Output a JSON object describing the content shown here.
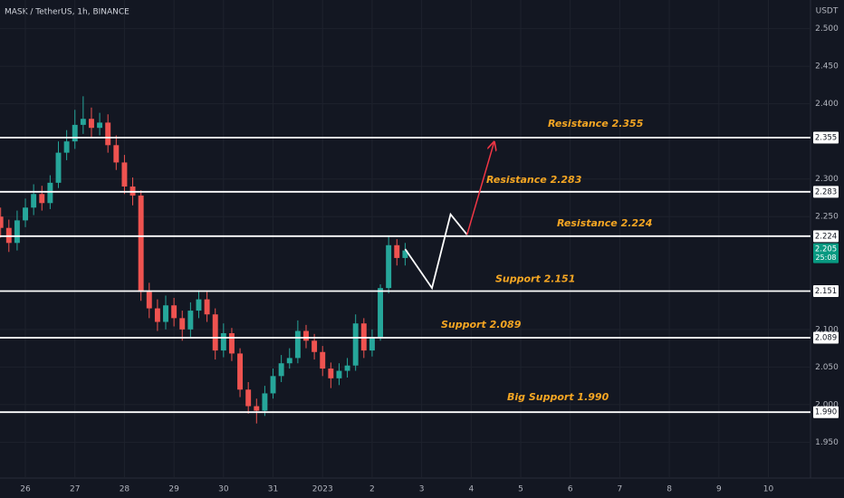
{
  "chart_data": {
    "type": "candlestick",
    "title": "MASK / TetherUS, 1h, BINANCE",
    "y_axis_label": "USDT",
    "x": [
      -12,
      -8,
      -4,
      0,
      4,
      8,
      12,
      16,
      20,
      24,
      28,
      32,
      36,
      40,
      44,
      48,
      52,
      56,
      60,
      64,
      68,
      72,
      76,
      80,
      84,
      88,
      92,
      96,
      100,
      104,
      108,
      112,
      116,
      120,
      124,
      128,
      132,
      136,
      140,
      144,
      148,
      152,
      156,
      160,
      164,
      168,
      172,
      176,
      180,
      184
    ],
    "open": [
      2.25,
      2.235,
      2.215,
      2.245,
      2.262,
      2.28,
      2.268,
      2.295,
      2.335,
      2.35,
      2.372,
      2.38,
      2.368,
      2.375,
      2.345,
      2.322,
      2.29,
      2.278,
      2.15,
      2.128,
      2.11,
      2.132,
      2.115,
      2.1,
      2.125,
      2.14,
      2.12,
      2.072,
      2.095,
      2.068,
      2.02,
      1.998,
      1.992,
      2.015,
      2.038,
      2.055,
      2.062,
      2.098,
      2.085,
      2.07,
      2.048,
      2.035,
      2.045,
      2.052,
      2.108,
      2.072,
      2.09,
      2.155,
      2.212,
      2.195
    ],
    "high": [
      2.262,
      2.246,
      2.258,
      2.274,
      2.293,
      2.291,
      2.305,
      2.35,
      2.365,
      2.392,
      2.41,
      2.395,
      2.388,
      2.386,
      2.358,
      2.332,
      2.302,
      2.285,
      2.162,
      2.14,
      2.145,
      2.142,
      2.125,
      2.136,
      2.152,
      2.15,
      2.128,
      2.108,
      2.102,
      2.075,
      2.03,
      2.008,
      2.025,
      2.048,
      2.066,
      2.075,
      2.112,
      2.106,
      2.094,
      2.078,
      2.056,
      2.055,
      2.062,
      2.12,
      2.115,
      2.1,
      2.16,
      2.225,
      2.22,
      2.215
    ],
    "low": [
      2.222,
      2.203,
      2.205,
      2.236,
      2.252,
      2.258,
      2.26,
      2.288,
      2.325,
      2.34,
      2.36,
      2.355,
      2.358,
      2.335,
      2.312,
      2.28,
      2.265,
      2.138,
      2.115,
      2.098,
      2.1,
      2.104,
      2.085,
      2.09,
      2.115,
      2.11,
      2.06,
      2.063,
      2.058,
      2.01,
      1.988,
      1.975,
      1.985,
      2.008,
      2.03,
      2.048,
      2.055,
      2.075,
      2.06,
      2.038,
      2.022,
      2.026,
      2.036,
      2.045,
      2.062,
      2.064,
      2.085,
      2.148,
      2.185,
      2.185
    ],
    "close": [
      2.235,
      2.215,
      2.245,
      2.262,
      2.28,
      2.268,
      2.295,
      2.335,
      2.35,
      2.372,
      2.38,
      2.368,
      2.375,
      2.345,
      2.322,
      2.29,
      2.278,
      2.15,
      2.128,
      2.11,
      2.132,
      2.115,
      2.1,
      2.125,
      2.14,
      2.12,
      2.072,
      2.095,
      2.068,
      2.02,
      1.998,
      1.992,
      2.015,
      2.038,
      2.055,
      2.062,
      2.098,
      2.085,
      2.07,
      2.048,
      2.035,
      2.045,
      2.052,
      2.108,
      2.072,
      2.09,
      2.155,
      2.212,
      2.195,
      2.205
    ],
    "up_color": "#26a69a",
    "down_color": "#ef5350",
    "xlim": [
      -12.3,
      380.4
    ],
    "ylim": [
      1.912,
      2.538
    ],
    "grid": true,
    "xticks": [
      {
        "value": 0,
        "label": "26"
      },
      {
        "value": 24,
        "label": "27"
      },
      {
        "value": 48,
        "label": "28"
      },
      {
        "value": 72,
        "label": "29"
      },
      {
        "value": 96,
        "label": "30"
      },
      {
        "value": 120,
        "label": "31"
      },
      {
        "value": 144,
        "label": "2023"
      },
      {
        "value": 168,
        "label": "2"
      },
      {
        "value": 192,
        "label": "3"
      },
      {
        "value": 216,
        "label": "4"
      },
      {
        "value": 240,
        "label": "5"
      },
      {
        "value": 264,
        "label": "6"
      },
      {
        "value": 288,
        "label": "7"
      },
      {
        "value": 312,
        "label": "8"
      },
      {
        "value": 336,
        "label": "9"
      },
      {
        "value": 360,
        "label": "10"
      }
    ],
    "yticks": [
      {
        "value": 2.5,
        "label": "2.500"
      },
      {
        "value": 2.45,
        "label": "2.450"
      },
      {
        "value": 2.4,
        "label": "2.400"
      },
      {
        "value": 2.3,
        "label": "2.300"
      },
      {
        "value": 2.25,
        "label": "2.250"
      },
      {
        "value": 2.1,
        "label": "2.100"
      },
      {
        "value": 2.05,
        "label": "2.050"
      },
      {
        "value": 2.0,
        "label": "2.000"
      },
      {
        "value": 1.95,
        "label": "1.950"
      }
    ],
    "levels": [
      {
        "value": 2.355,
        "label": "2.355",
        "note": "Resistance 2.355"
      },
      {
        "value": 2.283,
        "label": "2.283",
        "note": "Resistance 2.283"
      },
      {
        "value": 2.224,
        "label": "2.224",
        "note": "Resistance 2.224"
      },
      {
        "value": 2.151,
        "label": "2.151",
        "note": "Support 2.151"
      },
      {
        "value": 2.089,
        "label": "2.089",
        "note": "Support 2.089"
      },
      {
        "value": 1.99,
        "label": "1.990",
        "note": "Big Support 1.990"
      }
    ],
    "level_color": "#ffffff",
    "note_color": "#f5a623",
    "last_price": {
      "value": 2.205,
      "label": "2.205",
      "countdown": "25:08",
      "color": "#089981"
    },
    "projection": {
      "x": [
        184,
        197,
        206,
        214
      ],
      "y": [
        2.207,
        2.155,
        2.253,
        2.226
      ],
      "color": "#ffffff"
    },
    "arrow": {
      "x": [
        214,
        227
      ],
      "y": [
        2.226,
        2.348
      ],
      "color": "#f23645"
    }
  }
}
